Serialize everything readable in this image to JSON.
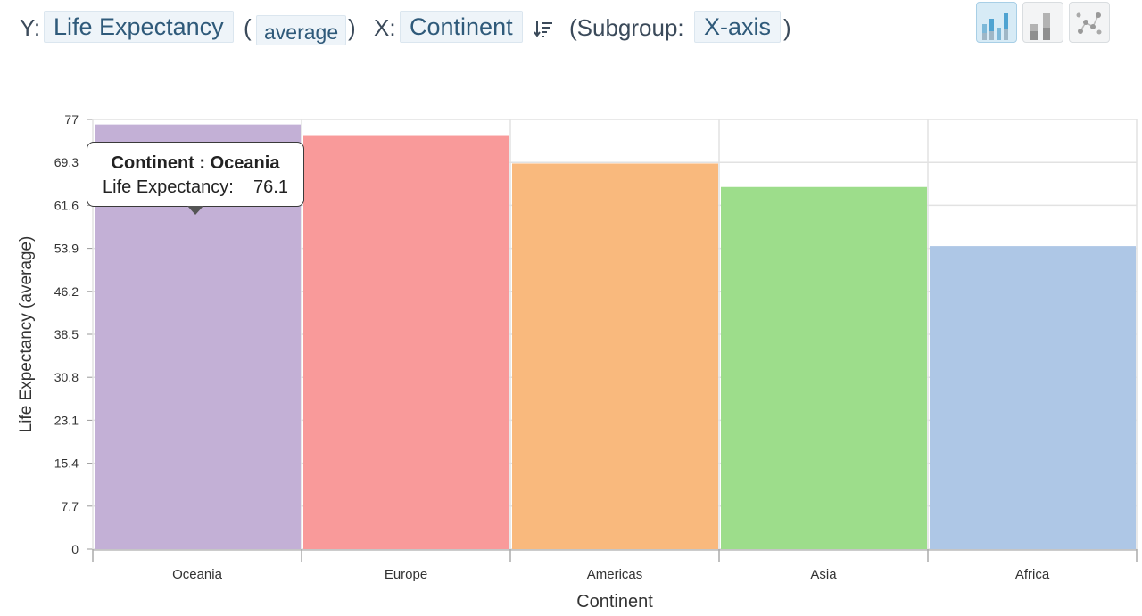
{
  "toolbar": {
    "y_prefix": "Y:",
    "y_field": "Life Expectancy",
    "open_paren": "(",
    "aggregate": "average",
    "close_paren": ")",
    "x_prefix": "X:",
    "x_field": "Continent",
    "subgroup_prefix": "(Subgroup:",
    "subgroup_value": "X-axis",
    "subgroup_close": ")"
  },
  "colors": {
    "accent": "#4fa3d1",
    "pill_bg": "#eef4f9",
    "grid": "#e0e0e0"
  },
  "tooltip": {
    "title_prefix": "Continent : ",
    "title_value": "Oceania",
    "label": "Life Expectancy:",
    "value": "76.1"
  },
  "chart_data": {
    "type": "bar",
    "categories": [
      "Oceania",
      "Europe",
      "Americas",
      "Asia",
      "Africa"
    ],
    "values": [
      76.1,
      74.2,
      69.1,
      64.9,
      54.3
    ],
    "colors": [
      "#c3b0d6",
      "#f99a9a",
      "#f9b97d",
      "#9ddd8b",
      "#aec7e6"
    ],
    "xlabel": "Continent",
    "ylabel": "Life Expectancy (average)",
    "ylim": [
      0,
      77
    ],
    "yticks": [
      "0",
      "7.7",
      "15.4",
      "23.1",
      "30.8",
      "38.5",
      "46.2",
      "53.9",
      "61.6",
      "69.3",
      "77"
    ],
    "grid": true
  }
}
